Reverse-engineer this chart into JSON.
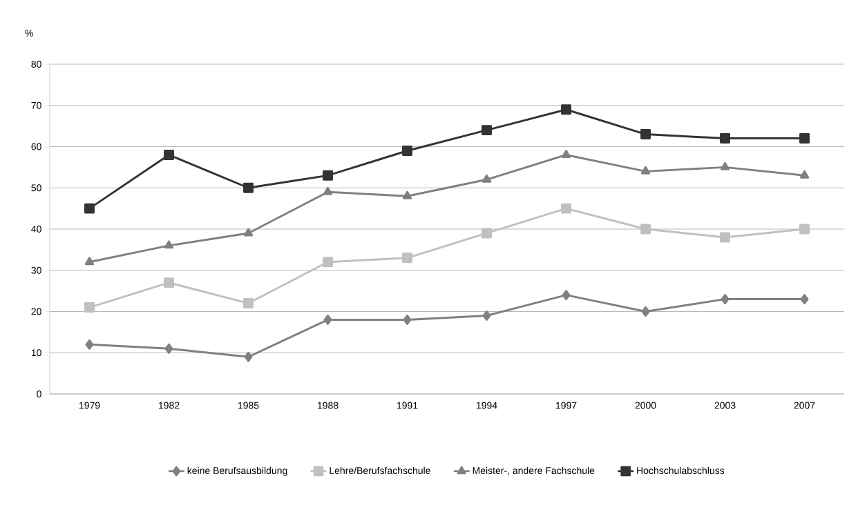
{
  "chart_data": {
    "type": "line",
    "ylabel": "%",
    "categories": [
      "1979",
      "1982",
      "1985",
      "1988",
      "1991",
      "1994",
      "1997",
      "2000",
      "2003",
      "2007"
    ],
    "series": [
      {
        "name": "keine Berufsausbildung",
        "color": "#808080",
        "marker": "diamond",
        "values": [
          12,
          11,
          9,
          18,
          18,
          19,
          24,
          20,
          23,
          23
        ]
      },
      {
        "name": "Lehre/Berufsfachschule",
        "color": "#c0c0c0",
        "marker": "square",
        "values": [
          21,
          27,
          22,
          32,
          33,
          39,
          45,
          40,
          38,
          40
        ]
      },
      {
        "name": "Meister-, andere Fachschule",
        "color": "#808080",
        "marker": "triangle",
        "values": [
          32,
          36,
          39,
          49,
          48,
          52,
          58,
          54,
          55,
          53
        ]
      },
      {
        "name": "Hochschulabschluss",
        "color": "#333333",
        "marker": "square",
        "values": [
          45,
          58,
          50,
          53,
          59,
          64,
          69,
          63,
          62,
          62
        ]
      }
    ],
    "ylim": [
      0,
      80
    ],
    "yticks": [
      0,
      10,
      20,
      30,
      40,
      50,
      60,
      70,
      80
    ],
    "grid": "y",
    "legend": "bottom",
    "line_style": "solid"
  }
}
